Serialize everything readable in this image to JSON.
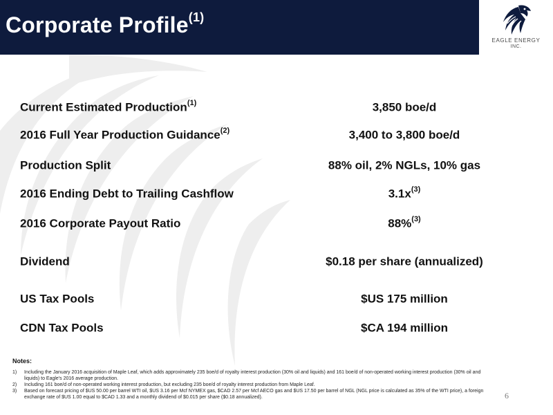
{
  "header": {
    "title": "Corporate Profile",
    "title_sup": "(1)",
    "background_color": "#0e1b3d"
  },
  "logo": {
    "name": "EAGLE ENERGY",
    "sub": "INC.",
    "icon": "eagle-logo"
  },
  "rows": [
    {
      "label": "Current Estimated Production",
      "label_sup": "(1)",
      "value": "3,850 boe/d",
      "value_sup": ""
    },
    {
      "label": "2016 Full Year Production Guidance",
      "label_sup": "(2)",
      "value": "3,400 to 3,800 boe/d",
      "value_sup": ""
    },
    {
      "label": "Production Split",
      "label_sup": "",
      "value": "88% oil, 2% NGLs, 10% gas",
      "value_sup": ""
    },
    {
      "label": "2016 Ending Debt to Trailing Cashflow",
      "label_sup": "",
      "value": "3.1x",
      "value_sup": "(3)"
    },
    {
      "label": "2016 Corporate Payout Ratio",
      "label_sup": "",
      "value": "88%",
      "value_sup": "(3)"
    },
    {
      "label": "Dividend",
      "label_sup": "",
      "value": "$0.18 per share (annualized)",
      "value_sup": ""
    },
    {
      "label": "US Tax Pools",
      "label_sup": "",
      "value": "$US 175 million",
      "value_sup": ""
    },
    {
      "label": "CDN Tax Pools",
      "label_sup": "",
      "value": "$CA 194 million",
      "value_sup": ""
    }
  ],
  "notes": {
    "title": "Notes:",
    "items": [
      {
        "num": "1)",
        "text": "Including the January 2016 acquisition of Maple Leaf, which adds approximately 235 boe/d of royalty interest production (30% oil and liquids) and 161 boe/d of non-operated working interest production (30% oil and liquids) to Eagle's 2016 average production."
      },
      {
        "num": "2)",
        "text": "Including 161 boe/d of non-operated working interest production, but excluding 235 boe/d of royalty interest production from Maple Leaf."
      },
      {
        "num": "3)",
        "text": "Based on forecast pricing of $US 50.00 per barrel WTI oil, $US 3.16 per Mcf NYMEX gas, $CAD 2.57 per Mcf AECO gas and $US 17.50 per barrel of NGL (NGL price is calculated as 35% of the WTI price), a foreign exchange rate of $US 1.00 equal to $CAD 1.33 and a monthly dividend of $0.015 per share ($0.18 annualized)."
      }
    ]
  },
  "page_number": "6"
}
